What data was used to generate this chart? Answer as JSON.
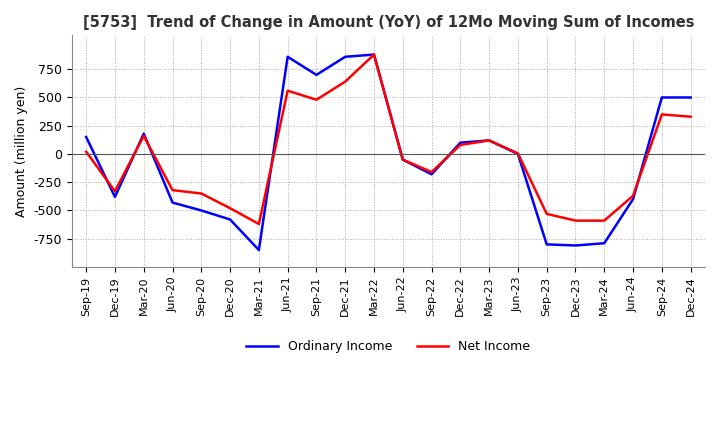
{
  "title": "[5753]  Trend of Change in Amount (YoY) of 12Mo Moving Sum of Incomes",
  "ylabel": "Amount (million yen)",
  "background_color": "#ffffff",
  "grid_color": "#aaaaaa",
  "x_labels": [
    "Sep-19",
    "Dec-19",
    "Mar-20",
    "Jun-20",
    "Sep-20",
    "Dec-20",
    "Mar-21",
    "Jun-21",
    "Sep-21",
    "Dec-21",
    "Mar-22",
    "Jun-22",
    "Sep-22",
    "Dec-22",
    "Mar-23",
    "Jun-23",
    "Sep-23",
    "Dec-23",
    "Mar-24",
    "Jun-24",
    "Sep-24",
    "Dec-24"
  ],
  "ordinary_income": [
    150,
    -380,
    180,
    -430,
    -500,
    -580,
    -850,
    860,
    700,
    860,
    880,
    -50,
    -180,
    100,
    120,
    0,
    -800,
    -810,
    -790,
    -400,
    500,
    500
  ],
  "net_income": [
    20,
    -330,
    160,
    -320,
    -350,
    -480,
    -620,
    560,
    480,
    640,
    880,
    -50,
    -160,
    80,
    120,
    5,
    -530,
    -590,
    -590,
    -370,
    350,
    330
  ],
  "ylim": [
    -1000,
    1050
  ],
  "yticks": [
    -750,
    -500,
    -250,
    0,
    250,
    500,
    750
  ],
  "line_color_ordinary": "#0000ff",
  "line_color_net": "#ff0000",
  "legend_labels": [
    "Ordinary Income",
    "Net Income"
  ]
}
